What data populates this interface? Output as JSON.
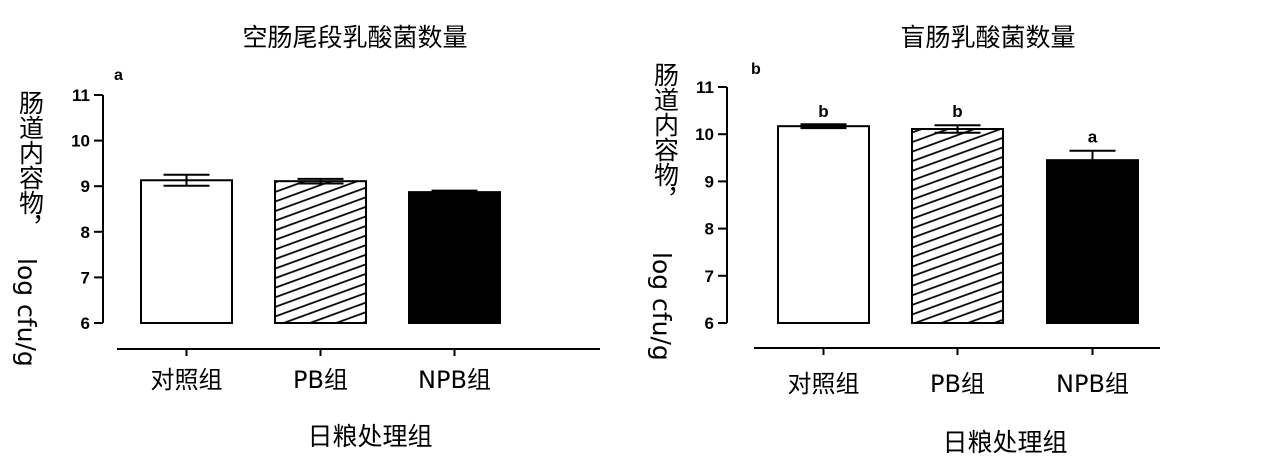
{
  "chart_data": [
    {
      "type": "bar",
      "panel_label": "a",
      "title": "空肠尾段乳酸菌数量",
      "xlabel": "日粮处理组",
      "ylabel_cn": "肠道内容物，",
      "ylabel_unit": "log cfu/g",
      "categories": [
        "对照组",
        "PB组",
        "NPB组"
      ],
      "values": [
        9.13,
        9.11,
        8.87
      ],
      "errors": [
        0.12,
        0.05,
        0.01
      ],
      "fills": [
        "white",
        "hatched",
        "black"
      ],
      "significance": [
        "",
        "",
        ""
      ],
      "ylim": [
        6,
        11
      ],
      "yticks": [
        "6",
        "7",
        "8",
        "9",
        "10",
        "11"
      ],
      "grid": false
    },
    {
      "type": "bar",
      "panel_label": "b",
      "title": "盲肠乳酸菌数量",
      "xlabel": "日粮处理组",
      "ylabel_cn": "肠道内容物，",
      "ylabel_unit": "log cfu/g",
      "categories": [
        "对照组",
        "PB组",
        "NPB组"
      ],
      "values": [
        10.17,
        10.11,
        9.45
      ],
      "errors": [
        0.02,
        0.08,
        0.2
      ],
      "fills": [
        "white",
        "hatched",
        "black"
      ],
      "significance": [
        "b",
        "b",
        "a"
      ],
      "ylim": [
        6,
        11
      ],
      "yticks": [
        "6",
        "7",
        "8",
        "9",
        "10",
        "11"
      ],
      "grid": false
    }
  ]
}
